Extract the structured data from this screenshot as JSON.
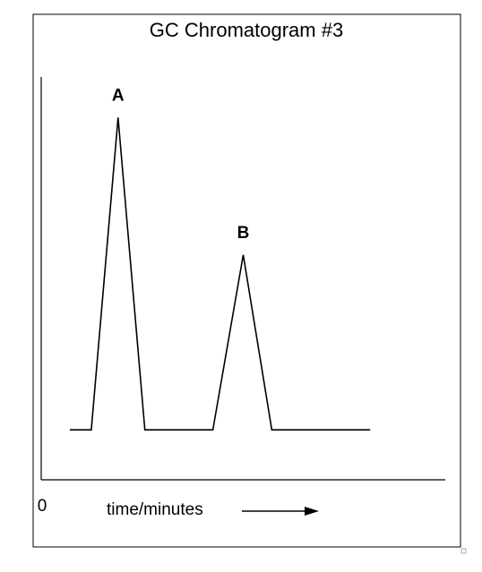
{
  "chart_data": {
    "type": "line",
    "title": "GC Chromatogram #3",
    "xlabel": "time/minutes",
    "ylabel": "",
    "x_origin_label": "0",
    "grid": false,
    "legend": "none",
    "x_axis_has_direction_arrow": true,
    "trace": {
      "x": [
        0.0,
        0.6,
        1.35,
        2.1,
        4.0,
        4.85,
        5.65,
        8.4
      ],
      "y": [
        0.0,
        0.0,
        1.0,
        0.0,
        0.0,
        0.56,
        0.0,
        0.0
      ]
    },
    "peaks": [
      {
        "label": "A",
        "x": 1.35,
        "y": 1.0
      },
      {
        "label": "B",
        "x": 4.85,
        "y": 0.56
      }
    ],
    "xlim": [
      -0.8,
      10.5
    ],
    "ylim": [
      -0.16,
      1.13
    ]
  }
}
